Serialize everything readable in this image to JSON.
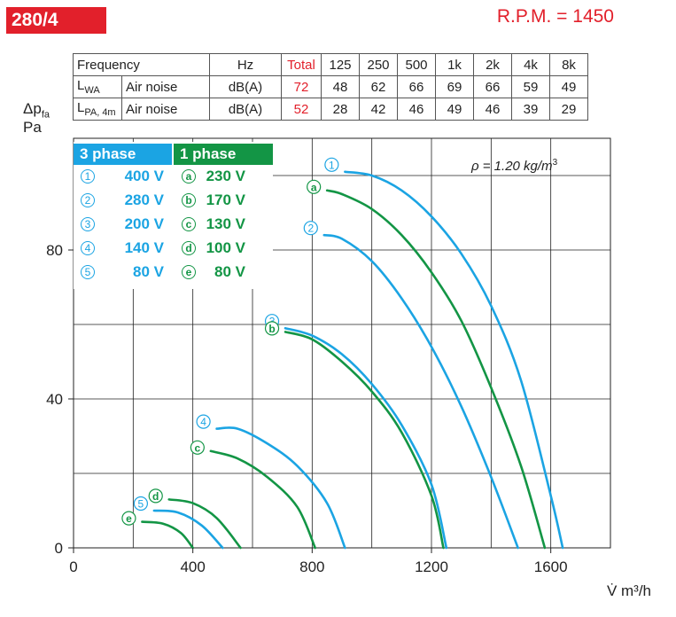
{
  "header": {
    "model": "280/4",
    "rpm": "R.P.M. = 1450"
  },
  "colors": {
    "red": "#e2202b",
    "blue": "#1ba4e3",
    "green": "#139545"
  },
  "noise_table": {
    "header": [
      "Frequency",
      "",
      "Hz",
      "Total",
      "125",
      "250",
      "500",
      "1k",
      "2k",
      "4k",
      "8k"
    ],
    "rows": [
      {
        "label": "L",
        "sub": "WA",
        "desc": "Air noise",
        "unit": "dB(A)",
        "total": "72",
        "values": [
          "48",
          "62",
          "66",
          "69",
          "66",
          "59",
          "49"
        ]
      },
      {
        "label": "L",
        "sub": "PA, 4m",
        "desc": "Air noise",
        "unit": "dB(A)",
        "total": "52",
        "values": [
          "28",
          "42",
          "46",
          "49",
          "46",
          "39",
          "29"
        ]
      }
    ]
  },
  "chart_data": {
    "type": "line",
    "xlabel": "V̇ m³/h",
    "ylabel_line1": "Δp",
    "ylabel_sub": "fa",
    "ylabel_line2": "Pa",
    "xlim": [
      0,
      1800
    ],
    "ylim": [
      0,
      110
    ],
    "xticks": [
      "0",
      "400",
      "800",
      "1200",
      "1600"
    ],
    "yticks": [
      "0",
      "40",
      "80"
    ],
    "density_note": "ρ = 1.20 kg/m",
    "density_sup": "3",
    "legend": {
      "three_phase_title": "3 phase",
      "one_phase_title": "1 phase",
      "three_phase": [
        {
          "mark": "1",
          "label": "400 V"
        },
        {
          "mark": "2",
          "label": "280 V"
        },
        {
          "mark": "3",
          "label": "200 V"
        },
        {
          "mark": "4",
          "label": "140 V"
        },
        {
          "mark": "5",
          "label": "80 V"
        }
      ],
      "one_phase": [
        {
          "mark": "a",
          "label": "230 V"
        },
        {
          "mark": "b",
          "label": "170 V"
        },
        {
          "mark": "c",
          "label": "130 V"
        },
        {
          "mark": "d",
          "label": "100 V"
        },
        {
          "mark": "e",
          "label": "80 V"
        }
      ]
    },
    "series": [
      {
        "mark": "1",
        "phase": "3",
        "color": "blue",
        "points": [
          [
            910,
            101
          ],
          [
            1000,
            100
          ],
          [
            1100,
            96
          ],
          [
            1200,
            89
          ],
          [
            1300,
            79
          ],
          [
            1400,
            65
          ],
          [
            1500,
            45
          ],
          [
            1600,
            14
          ],
          [
            1640,
            0
          ]
        ]
      },
      {
        "mark": "a",
        "phase": "1",
        "color": "green",
        "points": [
          [
            850,
            96
          ],
          [
            900,
            95
          ],
          [
            1000,
            91
          ],
          [
            1100,
            84
          ],
          [
            1200,
            74
          ],
          [
            1300,
            61
          ],
          [
            1400,
            43
          ],
          [
            1500,
            22
          ],
          [
            1580,
            0
          ]
        ]
      },
      {
        "mark": "2",
        "phase": "3",
        "color": "blue",
        "points": [
          [
            840,
            84
          ],
          [
            900,
            83
          ],
          [
            1000,
            77
          ],
          [
            1100,
            67
          ],
          [
            1200,
            54
          ],
          [
            1300,
            38
          ],
          [
            1400,
            19
          ],
          [
            1490,
            0
          ]
        ]
      },
      {
        "mark": "3",
        "phase": "3",
        "color": "blue",
        "points": [
          [
            710,
            59
          ],
          [
            800,
            57
          ],
          [
            900,
            52
          ],
          [
            1000,
            44
          ],
          [
            1100,
            33
          ],
          [
            1200,
            17
          ],
          [
            1250,
            0
          ]
        ]
      },
      {
        "mark": "b",
        "phase": "1",
        "color": "green",
        "points": [
          [
            710,
            58
          ],
          [
            800,
            56
          ],
          [
            900,
            50
          ],
          [
            1000,
            42
          ],
          [
            1100,
            31
          ],
          [
            1200,
            14
          ],
          [
            1240,
            0
          ]
        ]
      },
      {
        "mark": "4",
        "phase": "3",
        "color": "blue",
        "points": [
          [
            480,
            32
          ],
          [
            550,
            32
          ],
          [
            650,
            28
          ],
          [
            750,
            22
          ],
          [
            850,
            12
          ],
          [
            910,
            0
          ]
        ]
      },
      {
        "mark": "c",
        "phase": "1",
        "color": "green",
        "points": [
          [
            460,
            26
          ],
          [
            550,
            24
          ],
          [
            650,
            19
          ],
          [
            750,
            11
          ],
          [
            810,
            0
          ]
        ]
      },
      {
        "mark": "d",
        "phase": "1",
        "color": "green",
        "points": [
          [
            320,
            13
          ],
          [
            400,
            12
          ],
          [
            480,
            8
          ],
          [
            560,
            0
          ]
        ]
      },
      {
        "mark": "5",
        "phase": "3",
        "color": "blue",
        "points": [
          [
            270,
            10
          ],
          [
            350,
            9.5
          ],
          [
            430,
            6
          ],
          [
            500,
            0
          ]
        ]
      },
      {
        "mark": "e",
        "phase": "1",
        "color": "green",
        "points": [
          [
            230,
            7
          ],
          [
            300,
            6.5
          ],
          [
            360,
            4
          ],
          [
            400,
            0
          ]
        ]
      }
    ]
  }
}
